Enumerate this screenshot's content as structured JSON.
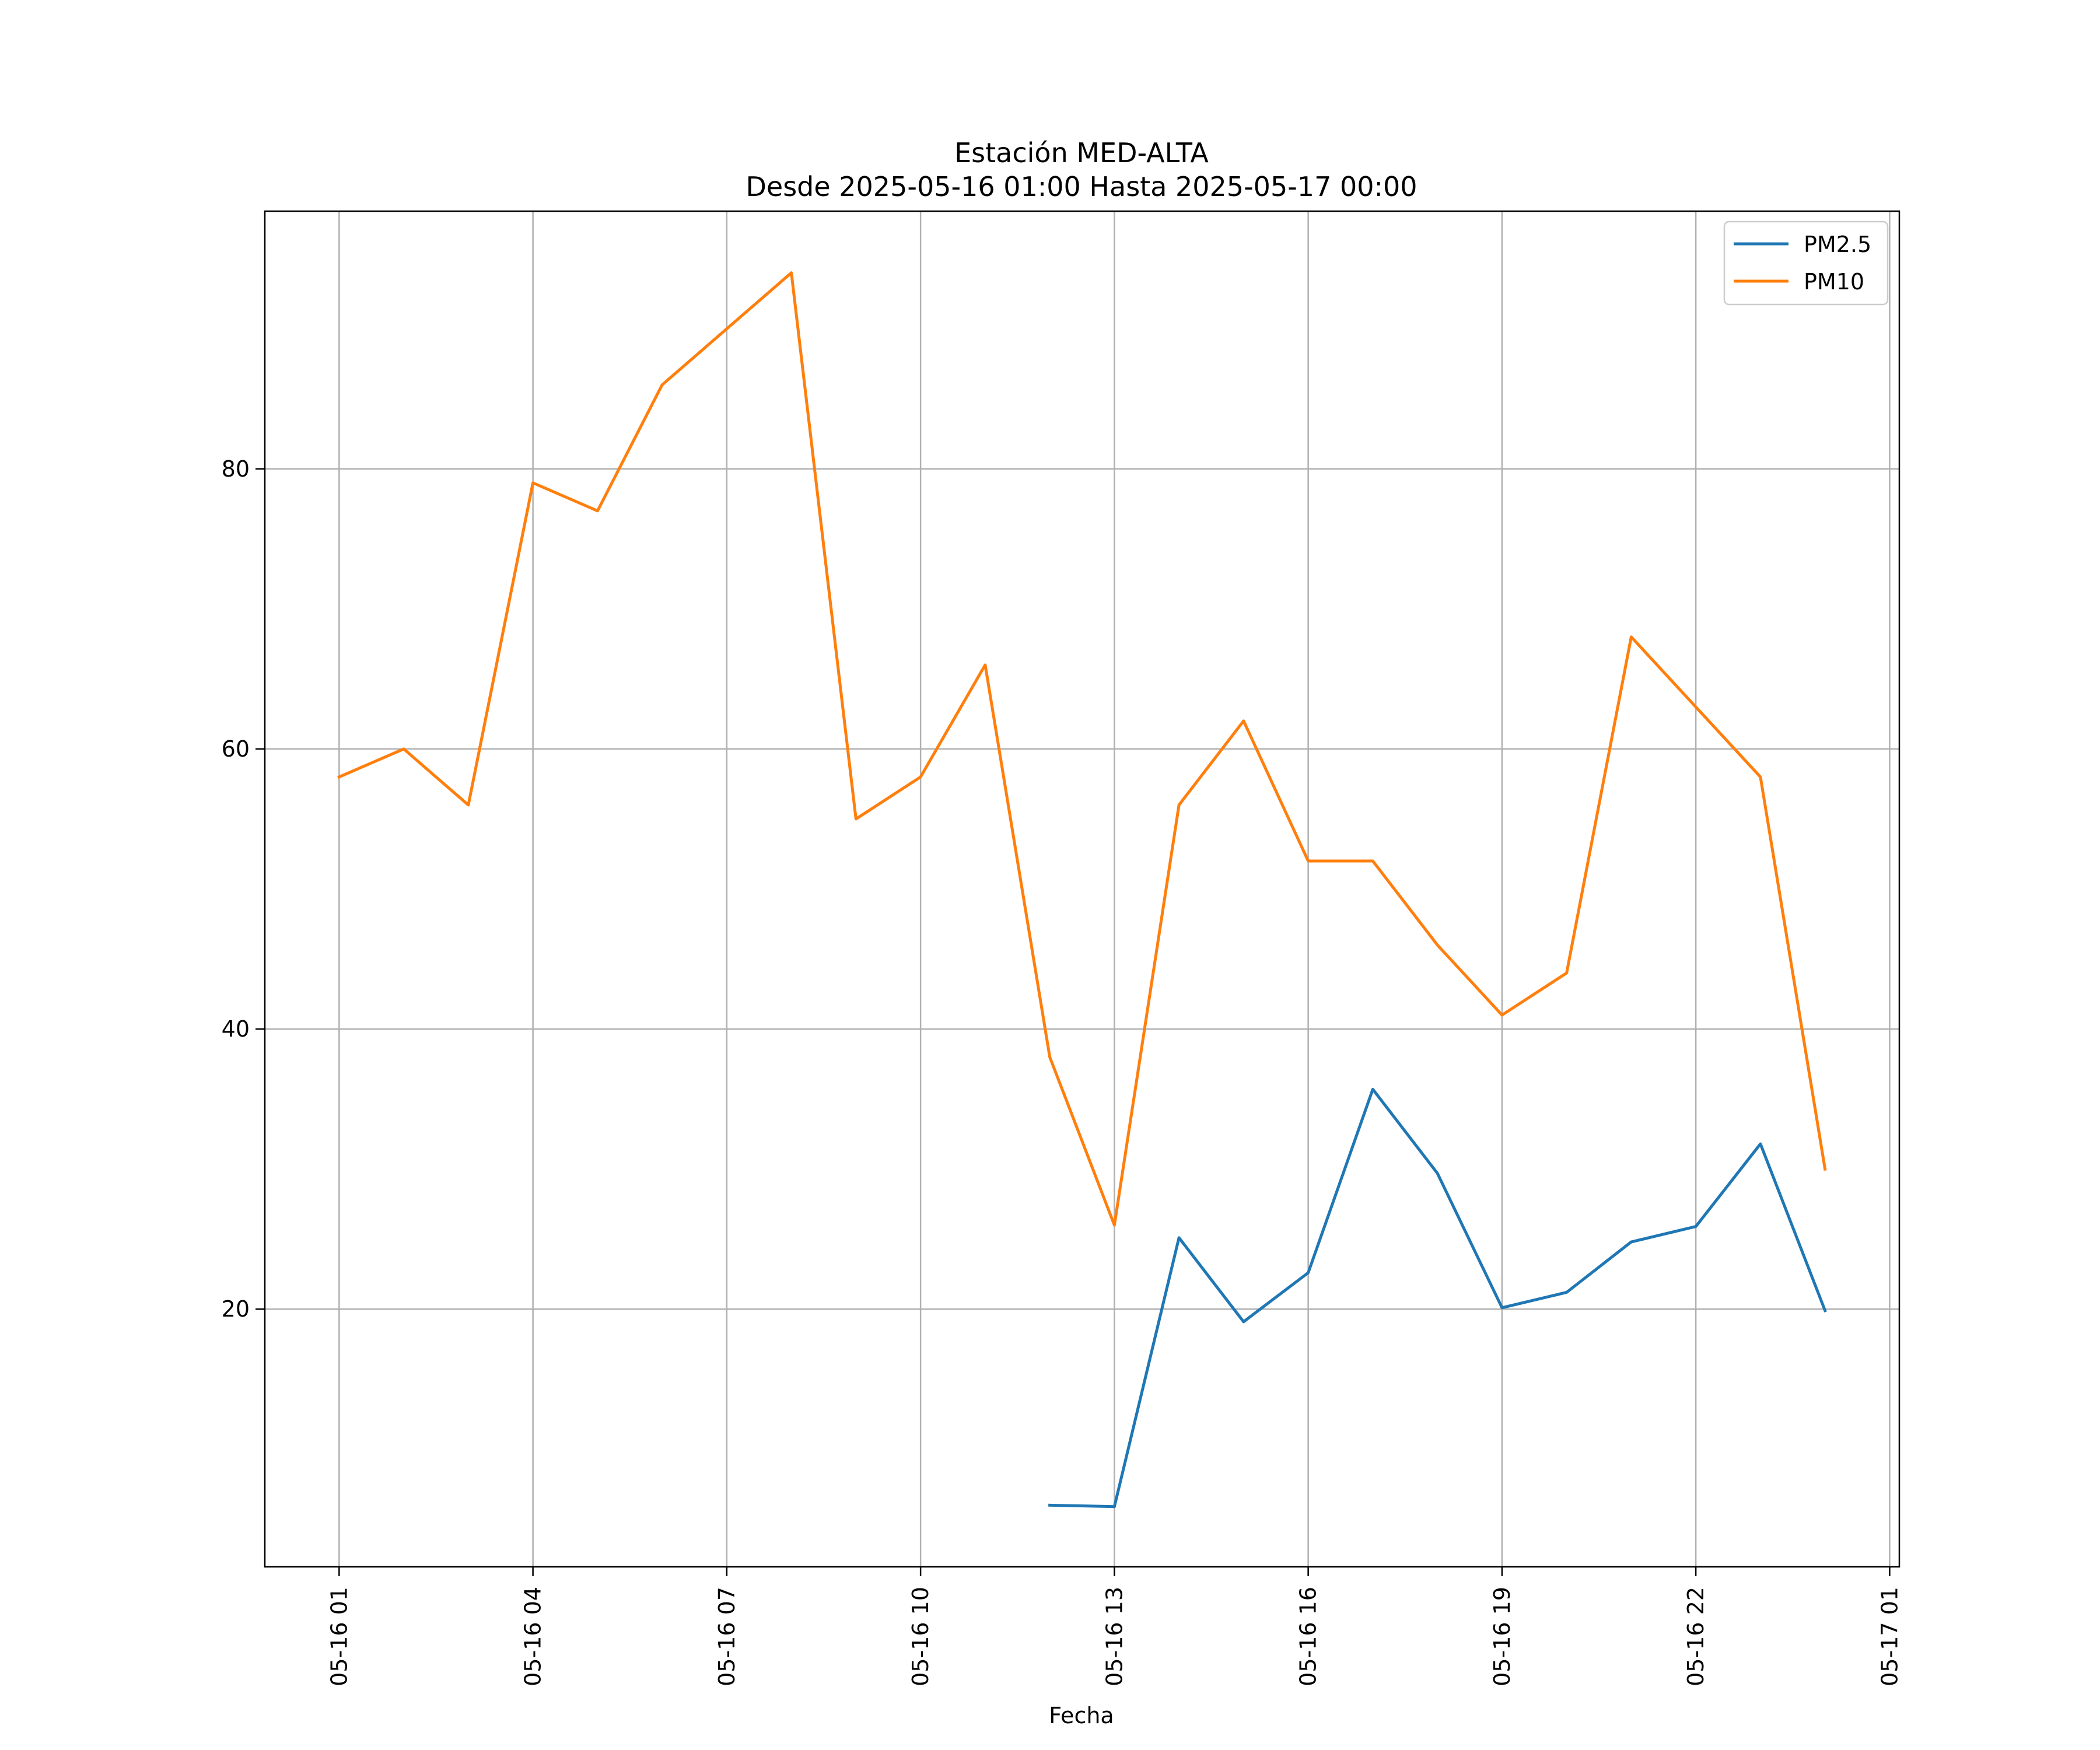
{
  "chart_data": {
    "type": "line",
    "title": "Estación MED-ALTA",
    "subtitle": "Desde 2025-05-16 01:00 Hasta 2025-05-17 00:00",
    "xlabel": "Fecha",
    "ylabel": "",
    "x_unit": "hour of 2025-05-16",
    "x_tick_values": [
      1,
      4,
      7,
      10,
      13,
      16,
      19,
      22,
      25
    ],
    "x_tick_labels": [
      "05-16 01",
      "05-16 04",
      "05-16 07",
      "05-16 10",
      "05-16 13",
      "05-16 16",
      "05-16 19",
      "05-16 22",
      "05-17 01"
    ],
    "y_ticks": [
      20,
      40,
      60,
      80
    ],
    "xlim": [
      -0.15,
      25.15
    ],
    "ylim": [
      1.6,
      98.4
    ],
    "grid": true,
    "legend_position": "top-right",
    "series": [
      {
        "name": "PM2.5",
        "color": "#1f77b4",
        "x": [
          12,
          13,
          14,
          15,
          16,
          17,
          18,
          19,
          20,
          21,
          22,
          23,
          24
        ],
        "values": [
          6.0,
          5.9,
          25.1,
          19.1,
          22.6,
          35.7,
          29.7,
          20.1,
          21.2,
          24.8,
          25.9,
          31.8,
          19.9
        ]
      },
      {
        "name": "PM10",
        "color": "#ff7f0e",
        "x": [
          1,
          2,
          3,
          4,
          5,
          6,
          7,
          8,
          9,
          10,
          11,
          12,
          13,
          14,
          15,
          16,
          17,
          18,
          19,
          20,
          21,
          22,
          23,
          24
        ],
        "values": [
          58,
          60,
          56,
          79,
          77,
          86,
          90,
          94,
          55,
          58,
          66,
          38,
          26,
          56,
          62,
          52,
          52,
          46,
          41,
          44,
          68,
          63,
          58,
          30
        ]
      }
    ]
  }
}
